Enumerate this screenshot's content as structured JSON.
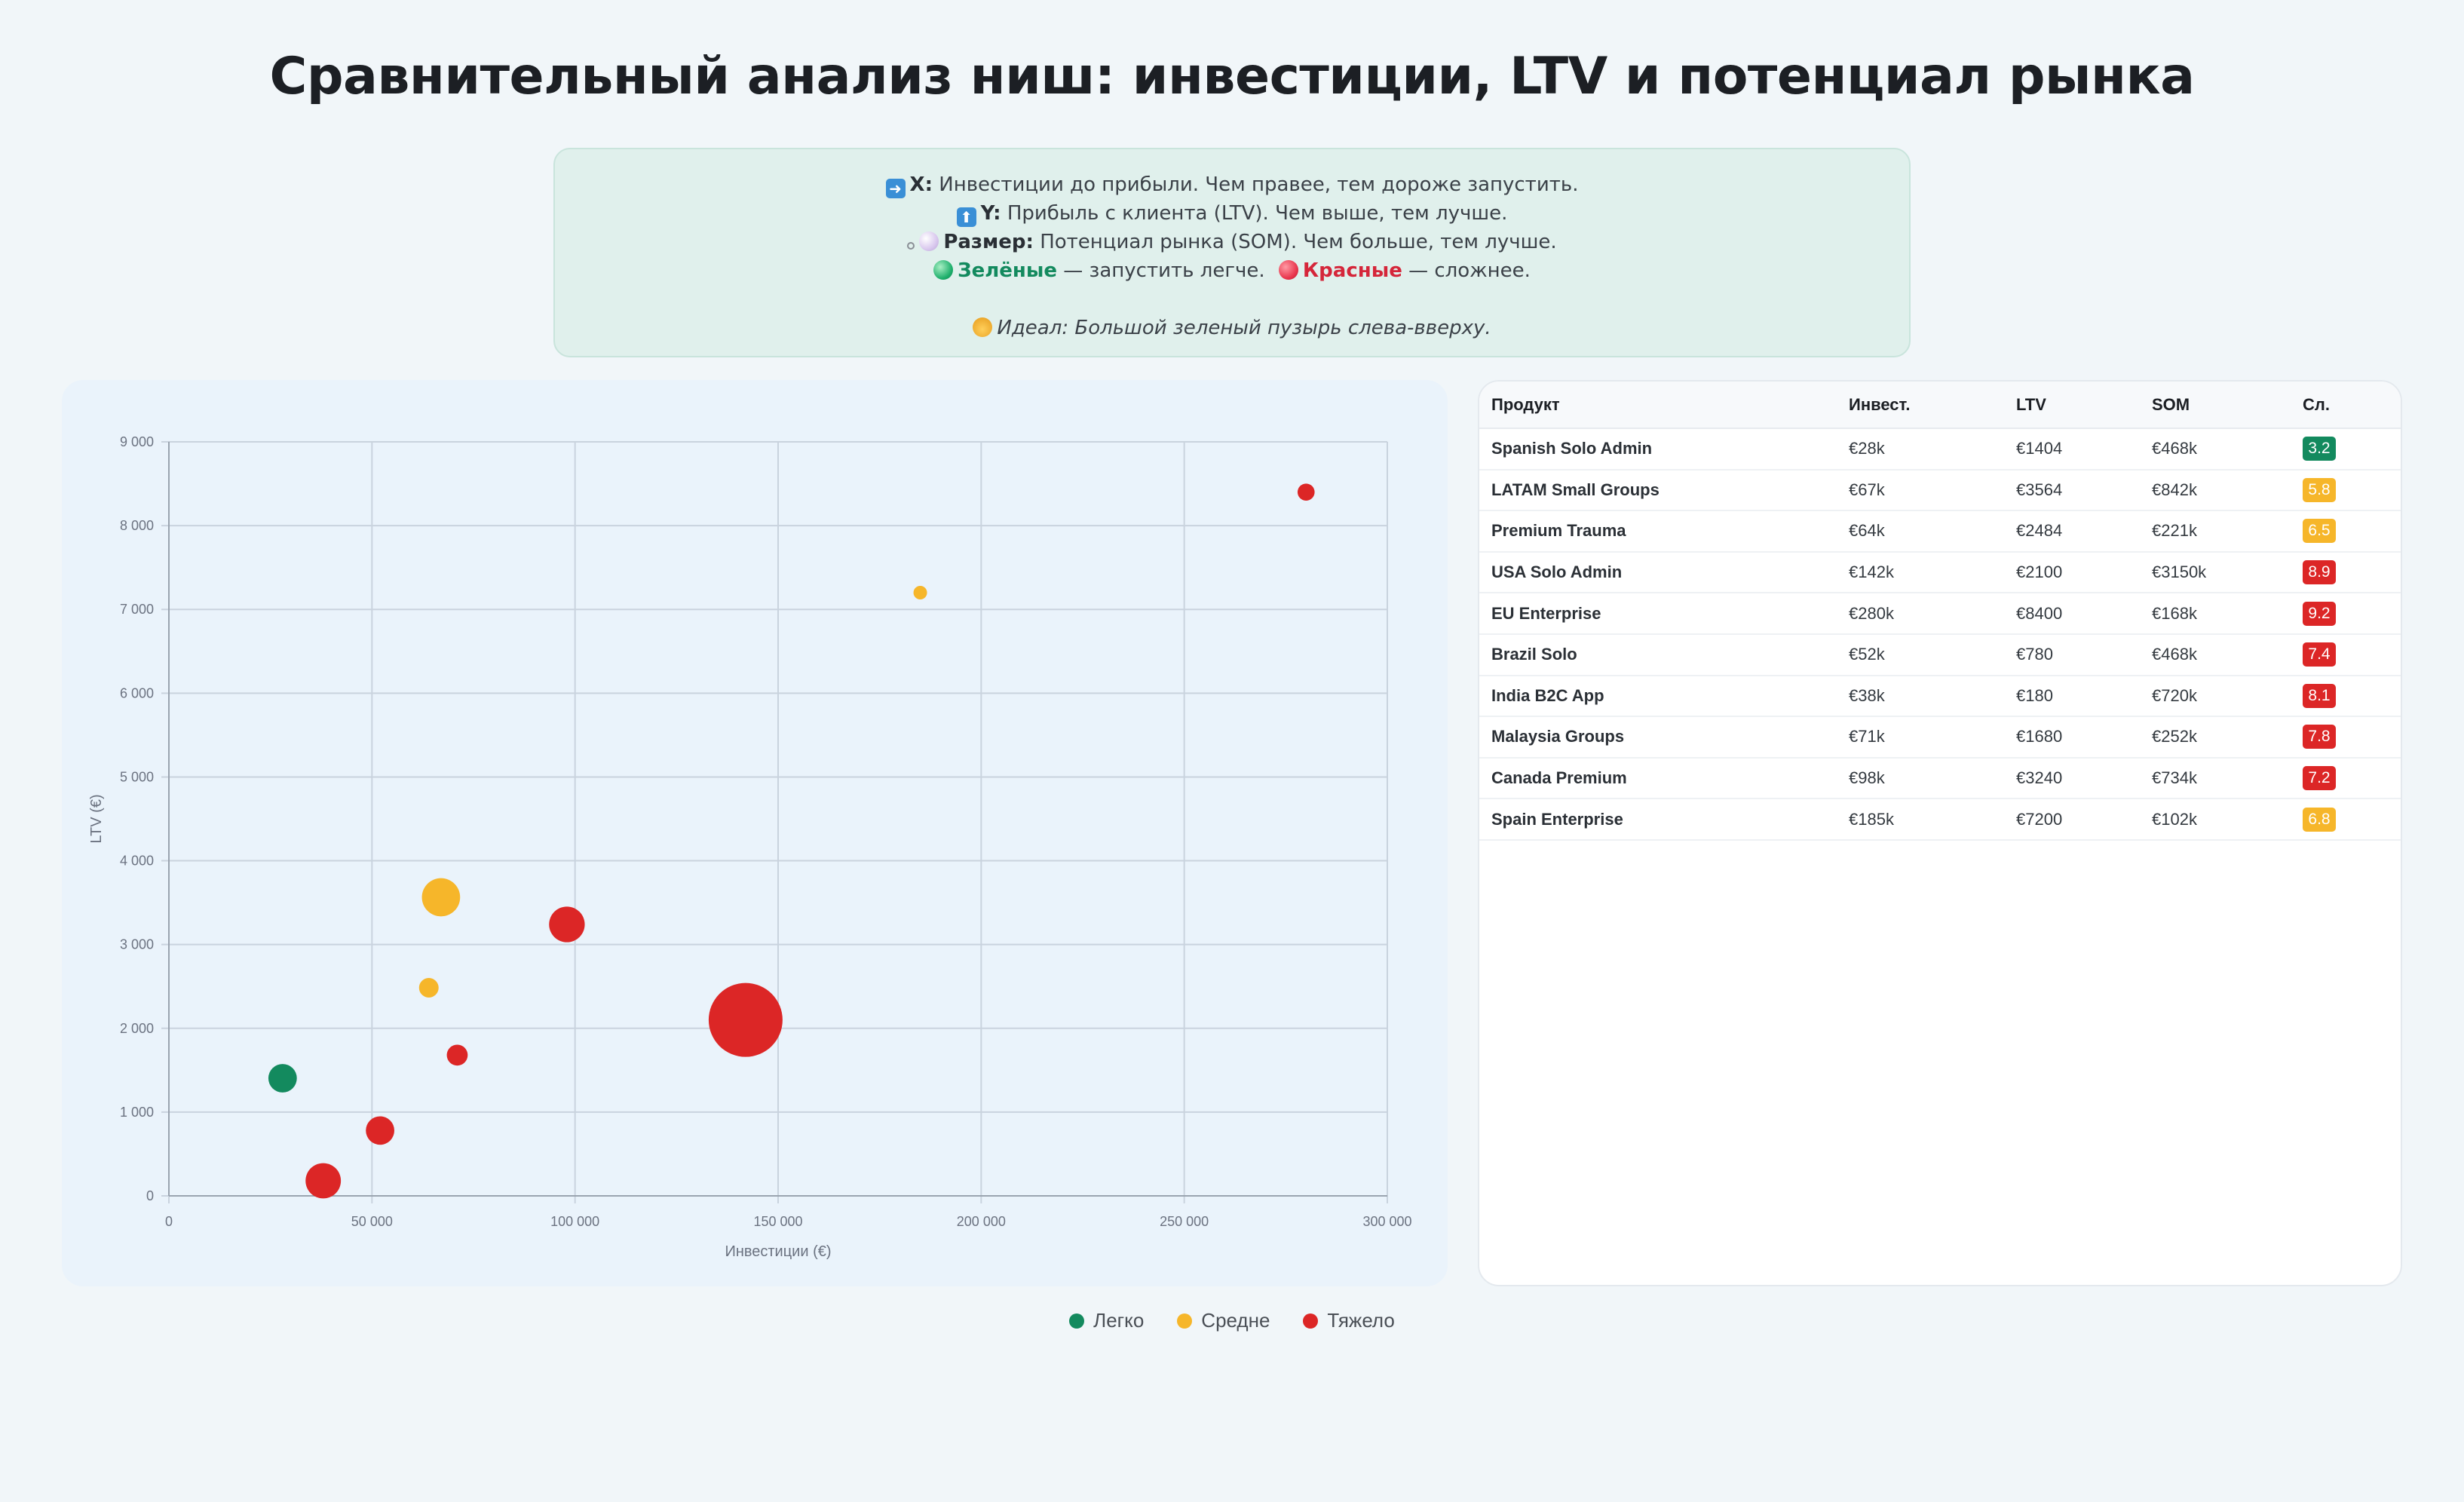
{
  "title": "Сравнительный анализ ниш: инвестиции, LTV и потенциал рынка",
  "info": {
    "x_label": "X:",
    "x_text": "Инвестиции до прибыли. Чем правее, тем дороже запустить.",
    "y_label": "Y:",
    "y_text": "Прибыль с клиента (LTV). Чем выше, тем лучше.",
    "size_label": "Размер:",
    "size_text": "Потенциал рынка (SOM). Чем больше, тем лучше.",
    "green_label": "Зелёные",
    "green_text": "— запустить легче.",
    "red_label": "Красные",
    "red_text": "— сложнее.",
    "ideal_text": "Идеал: Большой зеленый пузырь слева-вверху.",
    "icons": [
      "arrow-right-icon",
      "arrow-up-icon",
      "bubble-icon",
      "green-circle-icon",
      "red-circle-icon",
      "medal-icon"
    ]
  },
  "colors": {
    "easy": "#138a5e",
    "medium": "#f6b62a",
    "hard": "#dc2626",
    "grid": "#c9d3de",
    "axis_text": "#6b7280"
  },
  "chart_data": {
    "type": "scatter",
    "xlabel": "Инвестиции (€)",
    "ylabel": "LTV (€)",
    "xlim": [
      0,
      300000
    ],
    "ylim": [
      0,
      9000
    ],
    "x_ticks": [
      0,
      50000,
      100000,
      150000,
      200000,
      250000,
      300000
    ],
    "x_tick_labels": [
      "0",
      "50 000",
      "100 000",
      "150 000",
      "200 000",
      "250 000",
      "300 000"
    ],
    "y_ticks": [
      0,
      1000,
      2000,
      3000,
      4000,
      5000,
      6000,
      7000,
      8000,
      9000
    ],
    "y_tick_labels": [
      "0",
      "1 000",
      "2 000",
      "3 000",
      "4 000",
      "5 000",
      "6 000",
      "7 000",
      "8 000",
      "9 000"
    ],
    "grid": true,
    "legend_position": "bottom",
    "legend": [
      {
        "name": "Легко",
        "level": "easy"
      },
      {
        "name": "Средне",
        "level": "medium"
      },
      {
        "name": "Тяжело",
        "level": "hard"
      }
    ],
    "points": [
      {
        "name": "Spanish Solo Admin",
        "x": 28000,
        "y": 1404,
        "size": 468,
        "level": "easy"
      },
      {
        "name": "LATAM Small Groups",
        "x": 67000,
        "y": 3564,
        "size": 842,
        "level": "medium"
      },
      {
        "name": "Premium Trauma",
        "x": 64000,
        "y": 2484,
        "size": 221,
        "level": "medium"
      },
      {
        "name": "USA Solo Admin",
        "x": 142000,
        "y": 2100,
        "size": 3150,
        "level": "hard"
      },
      {
        "name": "EU Enterprise",
        "x": 280000,
        "y": 8400,
        "size": 168,
        "level": "hard"
      },
      {
        "name": "Brazil Solo",
        "x": 52000,
        "y": 780,
        "size": 468,
        "level": "hard"
      },
      {
        "name": "India B2C App",
        "x": 38000,
        "y": 180,
        "size": 720,
        "level": "hard"
      },
      {
        "name": "Malaysia Groups",
        "x": 71000,
        "y": 1680,
        "size": 252,
        "level": "hard"
      },
      {
        "name": "Canada Premium",
        "x": 98000,
        "y": 3240,
        "size": 734,
        "level": "hard"
      },
      {
        "name": "Spain Enterprise",
        "x": 185000,
        "y": 7200,
        "size": 102,
        "level": "medium"
      }
    ]
  },
  "table": {
    "headers": [
      "Продукт",
      "Инвест.",
      "LTV",
      "SOM",
      "Сл."
    ],
    "rows": [
      {
        "product": "Spanish Solo Admin",
        "invest": "€28k",
        "ltv": "€1404",
        "som": "€468k",
        "score": "3.2",
        "level": "easy"
      },
      {
        "product": "LATAM Small Groups",
        "invest": "€67k",
        "ltv": "€3564",
        "som": "€842k",
        "score": "5.8",
        "level": "medium"
      },
      {
        "product": "Premium Trauma",
        "invest": "€64k",
        "ltv": "€2484",
        "som": "€221k",
        "score": "6.5",
        "level": "medium"
      },
      {
        "product": "USA Solo Admin",
        "invest": "€142k",
        "ltv": "€2100",
        "som": "€3150k",
        "score": "8.9",
        "level": "hard"
      },
      {
        "product": "EU Enterprise",
        "invest": "€280k",
        "ltv": "€8400",
        "som": "€168k",
        "score": "9.2",
        "level": "hard"
      },
      {
        "product": "Brazil Solo",
        "invest": "€52k",
        "ltv": "€780",
        "som": "€468k",
        "score": "7.4",
        "level": "hard"
      },
      {
        "product": "India B2C App",
        "invest": "€38k",
        "ltv": "€180",
        "som": "€720k",
        "score": "8.1",
        "level": "hard"
      },
      {
        "product": "Malaysia Groups",
        "invest": "€71k",
        "ltv": "€1680",
        "som": "€252k",
        "score": "7.8",
        "level": "hard"
      },
      {
        "product": "Canada Premium",
        "invest": "€98k",
        "ltv": "€3240",
        "som": "€734k",
        "score": "7.2",
        "level": "hard"
      },
      {
        "product": "Spain Enterprise",
        "invest": "€185k",
        "ltv": "€7200",
        "som": "€102k",
        "score": "6.8",
        "level": "medium"
      }
    ]
  }
}
